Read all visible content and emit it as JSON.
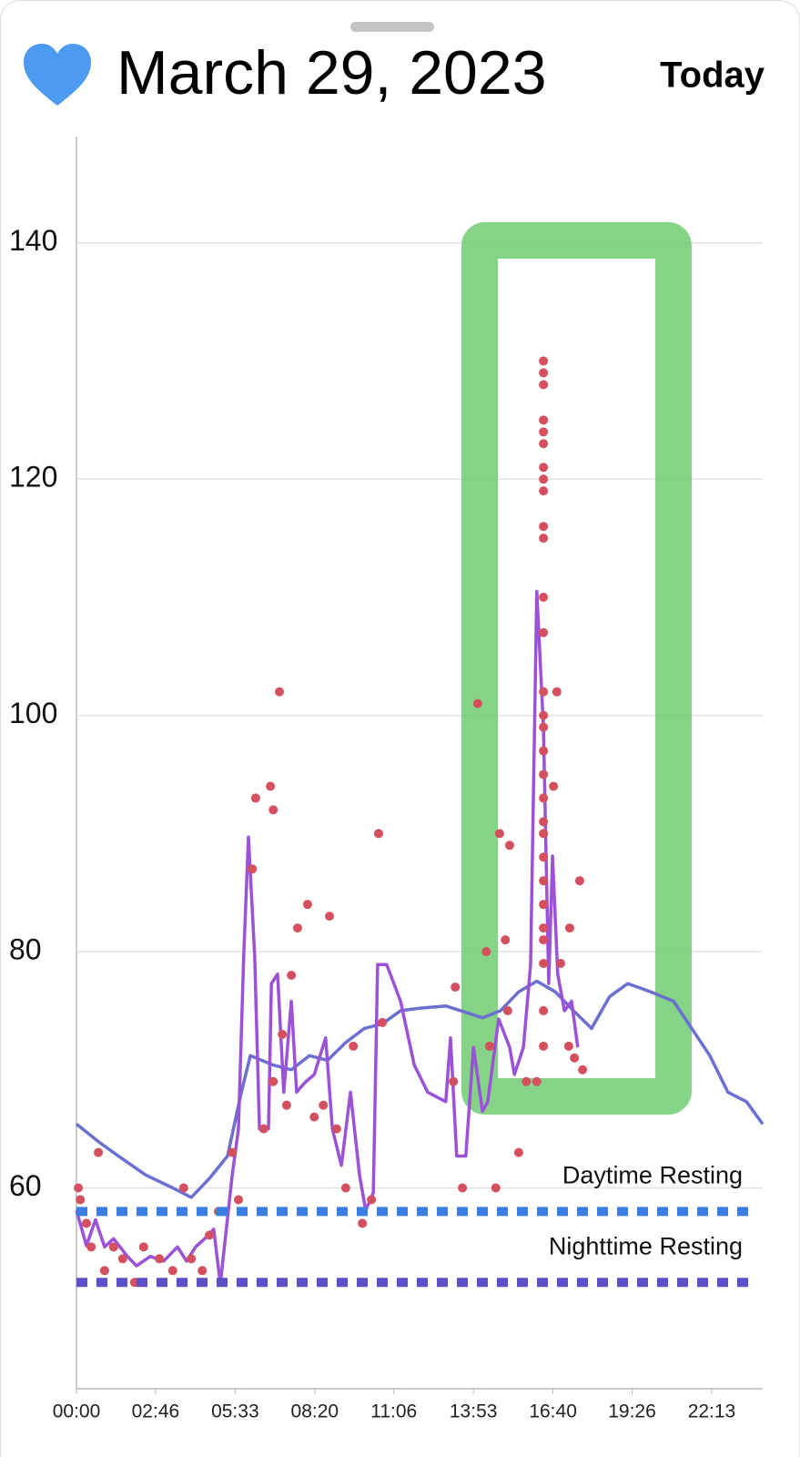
{
  "header": {
    "title": "March 29, 2023",
    "button": "Today"
  },
  "chart_data": {
    "type": "scatter",
    "xlim": [
      0,
      1440
    ],
    "ylim": [
      43,
      149
    ],
    "xticks": [
      {
        "value": 0,
        "label": "00:00"
      },
      {
        "value": 166,
        "label": "02:46"
      },
      {
        "value": 333,
        "label": "05:33"
      },
      {
        "value": 500,
        "label": "08:20"
      },
      {
        "value": 666,
        "label": "11:06"
      },
      {
        "value": 833,
        "label": "13:53"
      },
      {
        "value": 1000,
        "label": "16:40"
      },
      {
        "value": 1166,
        "label": "19:26"
      },
      {
        "value": 1333,
        "label": "22:13"
      }
    ],
    "yticks": [
      60,
      80,
      100,
      120,
      140
    ],
    "grid": true,
    "reference_lines": [
      {
        "label": "Daytime Resting",
        "value": 58,
        "color": "#3b7ee3"
      },
      {
        "label": "Nighttime Resting",
        "value": 52,
        "color": "#5b50c9"
      }
    ],
    "series": [
      {
        "style": "line",
        "color": "#6a6fd0",
        "x": [
          0,
          50,
          88,
          145,
          202,
          241,
          279,
          317,
          346,
          365,
          413,
          451,
          489,
          527,
          565,
          604,
          642,
          680,
          718,
          775,
          814,
          852,
          890,
          928,
          966,
          1005,
          1043,
          1081,
          1119,
          1157,
          1205,
          1253,
          1291,
          1329,
          1367,
          1406,
          1440
        ],
        "values": [
          65.4,
          63.8,
          62.7,
          61.1,
          60.0,
          59.2,
          60.8,
          62.7,
          68.1,
          71.2,
          70.4,
          70.0,
          71.2,
          70.8,
          72.3,
          73.5,
          73.9,
          75.0,
          75.2,
          75.4,
          74.9,
          74.4,
          75.0,
          76.6,
          77.5,
          76.6,
          75.0,
          73.5,
          76.2,
          77.3,
          76.6,
          75.8,
          73.5,
          71.2,
          68.1,
          67.3,
          65.4
        ]
      },
      {
        "style": "line",
        "color": "#9b52d8",
        "x": [
          0,
          21,
          40,
          59,
          78,
          107,
          126,
          155,
          183,
          212,
          231,
          250,
          269,
          288,
          302,
          327,
          340,
          351,
          361,
          374,
          384,
          403,
          409,
          422,
          435,
          451,
          462,
          479,
          499,
          523,
          537,
          556,
          575,
          594,
          607,
          623,
          632,
          651,
          680,
          709,
          737,
          775,
          785,
          798,
          817,
          833,
          852,
          863,
          886,
          909,
          919,
          938,
          953,
          966,
          980,
          991,
          999,
          1010,
          1024,
          1039,
          1052
        ],
        "values": [
          58.1,
          55.1,
          57.3,
          55.0,
          55.7,
          54.2,
          53.4,
          54.2,
          53.8,
          55.0,
          53.8,
          55.0,
          55.7,
          56.5,
          51.9,
          61.1,
          65.0,
          79.7,
          89.7,
          79.7,
          65.0,
          65.0,
          77.3,
          78.1,
          68.1,
          75.8,
          68.1,
          68.9,
          69.6,
          72.7,
          65.0,
          61.9,
          68.1,
          61.1,
          58.1,
          59.6,
          78.9,
          78.9,
          75.8,
          70.4,
          68.1,
          67.3,
          72.7,
          62.7,
          62.7,
          71.9,
          66.5,
          67.3,
          74.3,
          71.9,
          69.6,
          71.9,
          78.9,
          110.5,
          99.0,
          77.3,
          88.1,
          78.1,
          75.0,
          75.8,
          71.9
        ]
      },
      {
        "style": "dots",
        "color": "#d4505e",
        "x": [
          4,
          8,
          21,
          31,
          46,
          59,
          78,
          97,
          122,
          141,
          174,
          202,
          225,
          241,
          264,
          279,
          298,
          308,
          327,
          340,
          369,
          376,
          407,
          413,
          426,
          393,
          413,
          432,
          441,
          451,
          464,
          485,
          499,
          518,
          531,
          546,
          565,
          581,
          600,
          619,
          642,
          634,
          795,
          791,
          810,
          842,
          860,
          867,
          880,
          888,
          900,
          909,
          905,
          928,
          944,
          966,
          980,
          980,
          980,
          980,
          980,
          980,
          980,
          980,
          980,
          980,
          980,
          980,
          980,
          980,
          980,
          980,
          980,
          980,
          980,
          980,
          980,
          980,
          980,
          980,
          980,
          980,
          980,
          980,
          980,
          1008,
          1001,
          1016,
          1033,
          1035,
          1045,
          1056,
          1062
        ],
        "values": [
          60,
          59,
          57,
          55,
          63,
          53,
          55,
          54,
          52,
          55,
          54,
          53,
          60,
          54,
          53,
          56,
          58,
          52,
          63,
          59,
          87,
          93,
          94,
          92,
          102,
          65,
          69,
          73,
          67,
          78,
          82,
          84,
          66,
          67,
          83,
          65,
          60,
          72,
          57,
          59,
          74,
          90,
          77,
          69,
          60,
          101,
          80,
          72,
          60,
          90,
          81,
          89,
          75,
          63,
          69,
          69,
          130,
          129,
          128,
          125,
          124,
          123,
          121,
          120,
          119,
          116,
          115,
          110,
          107,
          102,
          100,
          99,
          97,
          95,
          93,
          91,
          90,
          88,
          86,
          84,
          82,
          81,
          79,
          75,
          72,
          102,
          94,
          79,
          72,
          82,
          71,
          86,
          70
        ]
      }
    ]
  }
}
